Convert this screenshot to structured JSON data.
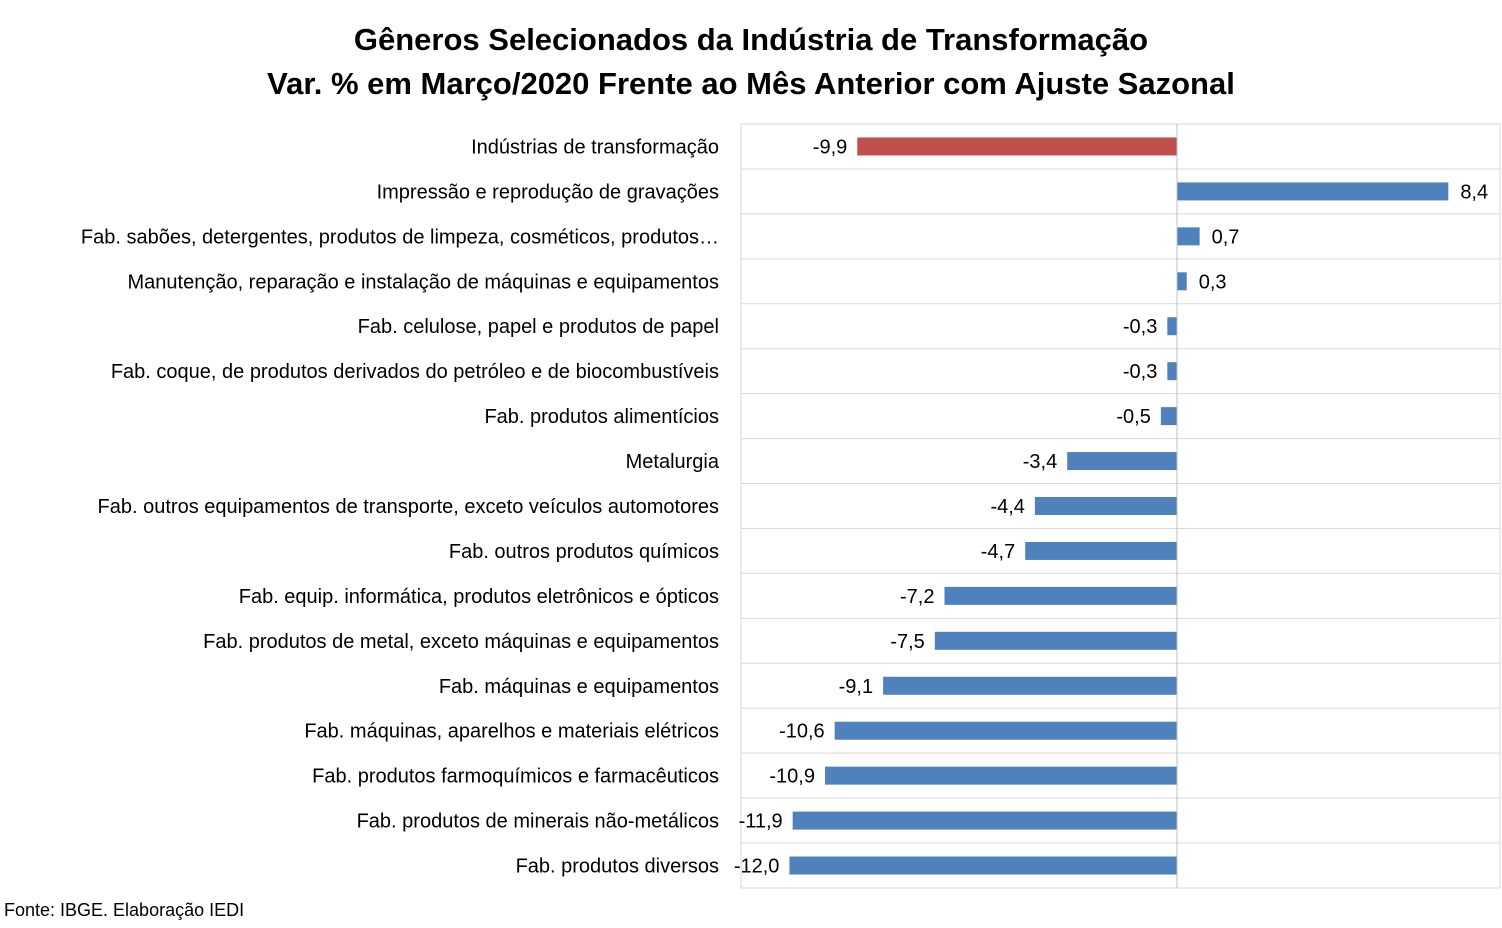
{
  "chart_data": {
    "type": "bar",
    "orientation": "horizontal",
    "title_line1": "Gêneros Selecionados da Indústria de Transformação",
    "title_line2": "Var. % em Março/2020 Frente ao Mês Anterior com Ajuste Sazonal",
    "categories": [
      "Indústrias de transformação",
      "Impressão e reprodução de gravações",
      "Fab. sabões, detergentes, produtos de limpeza, cosméticos, produtos…",
      "Manutenção, reparação e instalação de máquinas e equipamentos",
      "Fab. celulose, papel e produtos de papel",
      "Fab. coque, de produtos derivados do petróleo e de biocombustíveis",
      "Fab. produtos alimentícios",
      "Metalurgia",
      "Fab. outros equipamentos de transporte, exceto veículos automotores",
      "Fab. outros produtos químicos",
      "Fab. equip. informática, produtos eletrônicos e ópticos",
      "Fab. produtos de metal, exceto máquinas e equipamentos",
      "Fab. máquinas e equipamentos",
      "Fab. máquinas, aparelhos e materiais elétricos",
      "Fab. produtos farmoquímicos e farmacêuticos",
      "Fab. produtos de minerais não-metálicos",
      "Fab. produtos diversos"
    ],
    "values": [
      -9.9,
      8.4,
      0.7,
      0.3,
      -0.3,
      -0.3,
      -0.5,
      -3.4,
      -4.4,
      -4.7,
      -7.2,
      -7.5,
      -9.1,
      -10.6,
      -10.9,
      -11.9,
      -12.0
    ],
    "value_labels": [
      "-9,9",
      "8,4",
      "0,7",
      "0,3",
      "-0,3",
      "-0,3",
      "-0,5",
      "-3,4",
      "-4,4",
      "-4,7",
      "-7,2",
      "-7,5",
      "-9,1",
      "-10,6",
      "-10,9",
      "-11,9",
      "-12,0"
    ],
    "highlight_index": 0,
    "colors": {
      "highlight": "#C0504D",
      "bar": "#4F81BD",
      "grid": "#D9D9D9",
      "axis": "#BFBFBF"
    },
    "xlim": [
      -13.5,
      10.0
    ],
    "grid": true
  },
  "footer": {
    "source": "Fonte: IBGE. Elaboração IEDI"
  }
}
